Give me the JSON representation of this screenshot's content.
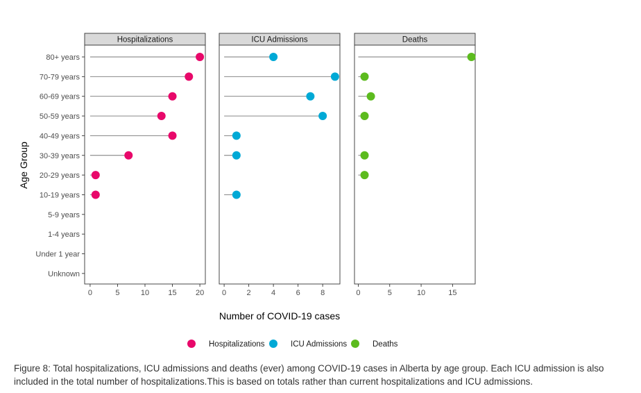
{
  "chart_data": {
    "type": "lollipop",
    "ylabel": "Age Group",
    "xlabel": "Number of COVID-19 cases",
    "categories": [
      "80+ years",
      "70-79 years",
      "60-69 years",
      "50-59 years",
      "40-49 years",
      "30-39 years",
      "20-29 years",
      "10-19 years",
      "5-9 years",
      "1-4 years",
      "Under 1 year",
      "Unknown"
    ],
    "legend_position": "bottom",
    "panels": [
      {
        "name": "Hospitalizations",
        "color": "#e8086a",
        "xlim": [
          -1,
          21
        ],
        "xticks": [
          0,
          5,
          10,
          15,
          20
        ],
        "values": [
          20,
          18,
          15,
          13,
          15,
          7,
          1,
          1,
          0,
          0,
          0,
          0
        ]
      },
      {
        "name": "ICU Admissions",
        "color": "#00a9d6",
        "xlim": [
          -0.4,
          9.4
        ],
        "xticks": [
          0,
          2,
          4,
          6,
          8
        ],
        "values": [
          4,
          9,
          7,
          8,
          1,
          1,
          0,
          1,
          0,
          0,
          0,
          0
        ]
      },
      {
        "name": "Deaths",
        "color": "#5cbb1e",
        "xlim": [
          -0.6,
          18.6
        ],
        "xticks": [
          0,
          5,
          10,
          15
        ],
        "values": [
          18,
          1,
          2,
          1,
          0,
          1,
          1,
          0,
          0,
          0,
          0,
          0
        ]
      }
    ]
  },
  "caption": "Figure 8: Total hospitalizations, ICU admissions and deaths (ever) among COVID-19 cases in Alberta by age group. Each ICU admission is also included in the total number of hospitalizations.This is based on totals rather than current hospitalizations and ICU admissions."
}
